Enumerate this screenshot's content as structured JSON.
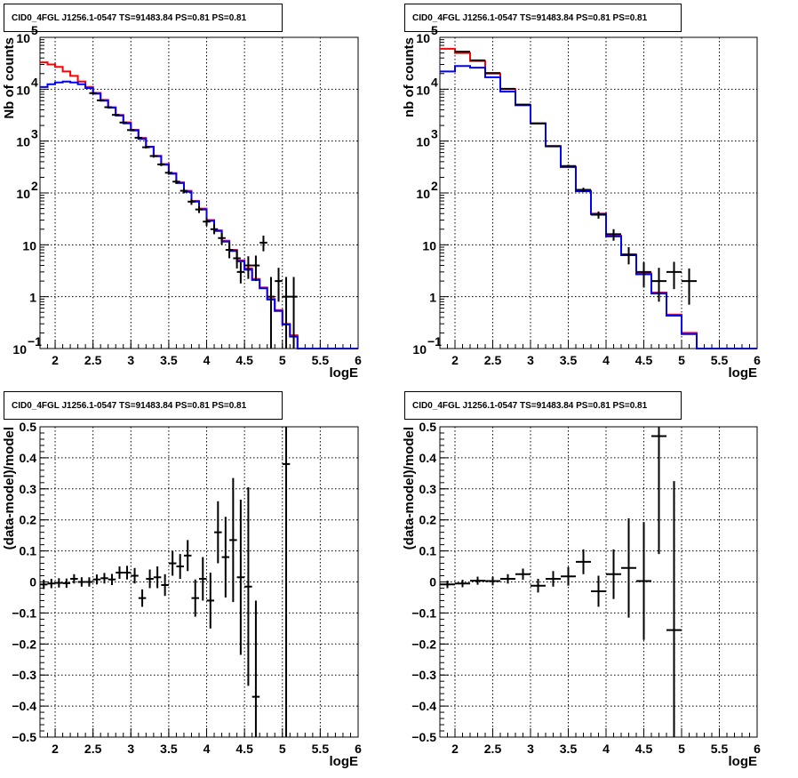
{
  "chart_data": [
    {
      "type": "line",
      "title": "CID0_4FGL J1256.1-0547 TS=91483.84 PS=0.81 PS=0.81",
      "xlabel": "logE",
      "ylabel": "Nb of counts",
      "xlim": [
        1.8,
        6
      ],
      "ylim": [
        0.1,
        100000
      ],
      "yscale": "log",
      "grid": true,
      "x_ticks": [
        "2",
        "2.5",
        "3",
        "3.5",
        "4",
        "4.5",
        "5",
        "5.5",
        "6"
      ],
      "y_ticks": [
        {
          "v": 0.1,
          "label": "10",
          "sup": "−1"
        },
        {
          "v": 1,
          "label": "1",
          "sup": ""
        },
        {
          "v": 10,
          "label": "10",
          "sup": ""
        },
        {
          "v": 100,
          "label": "10",
          "sup": "2"
        },
        {
          "v": 1000,
          "label": "10",
          "sup": "3"
        },
        {
          "v": 10000,
          "label": "10",
          "sup": "4"
        },
        {
          "v": 100000,
          "label": "10",
          "sup": "5"
        }
      ],
      "bin_edges": [
        1.8,
        1.9,
        2.0,
        2.1,
        2.2,
        2.3,
        2.4,
        2.5,
        2.6,
        2.7,
        2.8,
        2.9,
        3.0,
        3.1,
        3.2,
        3.3,
        3.4,
        3.5,
        3.6,
        3.7,
        3.8,
        3.9,
        4.0,
        4.1,
        4.2,
        4.3,
        4.4,
        4.5,
        4.6,
        4.7,
        4.8,
        4.9,
        5.0,
        5.1,
        5.2,
        5.3,
        5.4,
        5.5,
        5.6,
        5.7,
        5.8,
        5.9,
        6.0
      ],
      "series": [
        {
          "color": "#ff0000",
          "values": [
            33000,
            30000,
            27000,
            22000,
            18000,
            14000,
            11000,
            8500,
            6200,
            4500,
            3200,
            2300,
            1650,
            1150,
            780,
            520,
            360,
            240,
            160,
            110,
            70,
            50,
            30,
            19,
            12,
            8,
            5,
            3.5,
            2.2,
            1.5,
            0.9,
            0.55,
            0.3,
            0.18,
            0.1,
            0.1,
            0.1,
            0.1,
            0.1,
            0.1,
            0.1,
            0.1
          ]
        },
        {
          "color": "#0000ff",
          "values": [
            11000,
            12500,
            13500,
            14000,
            13500,
            12500,
            10500,
            8200,
            6000,
            4400,
            3100,
            2200,
            1600,
            1100,
            770,
            510,
            350,
            235,
            155,
            105,
            68,
            48,
            29,
            18.5,
            11.5,
            7.6,
            4.8,
            3.3,
            2.1,
            1.45,
            0.88,
            0.53,
            0.29,
            0.17,
            0.1,
            0.1,
            0.1,
            0.1,
            0.1,
            0.1,
            0.1,
            0.1
          ]
        }
      ],
      "data_points": [
        {
          "x": 2.5,
          "y": 8400,
          "xerr": 0.05,
          "ylo": 8200,
          "yhi": 8600
        },
        {
          "x": 2.6,
          "y": 6100,
          "xerr": 0.05,
          "ylo": 5950,
          "yhi": 6250
        },
        {
          "x": 2.7,
          "y": 4500,
          "xerr": 0.05,
          "ylo": 4380,
          "yhi": 4620
        },
        {
          "x": 2.8,
          "y": 3200,
          "xerr": 0.05,
          "ylo": 3100,
          "yhi": 3300
        },
        {
          "x": 2.9,
          "y": 2280,
          "xerr": 0.05,
          "ylo": 2200,
          "yhi": 2360
        },
        {
          "x": 3.0,
          "y": 1630,
          "xerr": 0.05,
          "ylo": 1560,
          "yhi": 1700
        },
        {
          "x": 3.1,
          "y": 1160,
          "xerr": 0.05,
          "ylo": 1100,
          "yhi": 1220
        },
        {
          "x": 3.2,
          "y": 760,
          "xerr": 0.05,
          "ylo": 720,
          "yhi": 800
        },
        {
          "x": 3.3,
          "y": 515,
          "xerr": 0.05,
          "ylo": 480,
          "yhi": 550
        },
        {
          "x": 3.4,
          "y": 355,
          "xerr": 0.05,
          "ylo": 330,
          "yhi": 380
        },
        {
          "x": 3.5,
          "y": 245,
          "xerr": 0.05,
          "ylo": 225,
          "yhi": 265
        },
        {
          "x": 3.6,
          "y": 165,
          "xerr": 0.05,
          "ylo": 150,
          "yhi": 180
        },
        {
          "x": 3.7,
          "y": 110,
          "xerr": 0.05,
          "ylo": 98,
          "yhi": 122
        },
        {
          "x": 3.8,
          "y": 68,
          "xerr": 0.05,
          "ylo": 59,
          "yhi": 77
        },
        {
          "x": 3.9,
          "y": 48,
          "xerr": 0.05,
          "ylo": 41,
          "yhi": 55
        },
        {
          "x": 4.0,
          "y": 28,
          "xerr": 0.05,
          "ylo": 23,
          "yhi": 33
        },
        {
          "x": 4.1,
          "y": 20,
          "xerr": 0.05,
          "ylo": 16,
          "yhi": 25
        },
        {
          "x": 4.2,
          "y": 13.5,
          "xerr": 0.05,
          "ylo": 10,
          "yhi": 17
        },
        {
          "x": 4.3,
          "y": 8,
          "xerr": 0.05,
          "ylo": 5.5,
          "yhi": 11
        },
        {
          "x": 4.4,
          "y": 5.5,
          "xerr": 0.05,
          "ylo": 3.5,
          "yhi": 8
        },
        {
          "x": 4.45,
          "y": 3.0,
          "xerr": 0.05,
          "ylo": 1.8,
          "yhi": 4.6
        },
        {
          "x": 4.55,
          "y": 4,
          "xerr": 0.05,
          "ylo": 2.2,
          "yhi": 6
        },
        {
          "x": 4.65,
          "y": 4,
          "xerr": 0.05,
          "ylo": 2.0,
          "yhi": 6.2
        },
        {
          "x": 4.75,
          "y": 11,
          "xerr": 0.05,
          "ylo": 7.5,
          "yhi": 15
        },
        {
          "x": 4.85,
          "y": 1,
          "xerr": 0.05,
          "ylo": 0.1,
          "yhi": 2.4
        },
        {
          "x": 4.95,
          "y": 2,
          "xerr": 0.05,
          "ylo": 0.8,
          "yhi": 3.6
        },
        {
          "x": 5.05,
          "y": 1,
          "xerr": 0.05,
          "ylo": 0.1,
          "yhi": 2.4
        },
        {
          "x": 5.15,
          "y": 1,
          "xerr": 0.05,
          "ylo": 0.1,
          "yhi": 2.4
        }
      ]
    },
    {
      "type": "line",
      "title": "CID0_4FGL J1256.1-0547 TS=91483.84 PS=0.81 PS=0.81",
      "xlabel": "logE",
      "ylabel": "nb of counts",
      "xlim": [
        1.8,
        6
      ],
      "ylim": [
        0.1,
        100000
      ],
      "yscale": "log",
      "grid": true,
      "x_ticks": [
        "2",
        "2.5",
        "3",
        "3.5",
        "4",
        "4.5",
        "5",
        "5.5",
        "6"
      ],
      "y_ticks": [
        {
          "v": 0.1,
          "label": "10",
          "sup": "−1"
        },
        {
          "v": 1,
          "label": "1",
          "sup": ""
        },
        {
          "v": 10,
          "label": "10",
          "sup": ""
        },
        {
          "v": 100,
          "label": "10",
          "sup": "2"
        },
        {
          "v": 1000,
          "label": "10",
          "sup": "3"
        },
        {
          "v": 10000,
          "label": "10",
          "sup": "4"
        },
        {
          "v": 100000,
          "label": "10",
          "sup": "5"
        }
      ],
      "bin_edges": [
        1.8,
        2.0,
        2.2,
        2.4,
        2.6,
        2.8,
        3.0,
        3.2,
        3.4,
        3.6,
        3.8,
        4.0,
        4.2,
        4.4,
        4.6,
        4.8,
        5.0,
        5.2,
        5.4,
        5.6,
        5.8,
        6.0
      ],
      "series": [
        {
          "color": "#ff0000",
          "values": [
            60000,
            50000,
            35000,
            20000,
            10000,
            5000,
            2200,
            800,
            320,
            110,
            40,
            15,
            6.5,
            2.8,
            1.2,
            0.45,
            0.2,
            0.1,
            0.1,
            0.1,
            0.1
          ]
        },
        {
          "color": "#0000ff",
          "values": [
            22000,
            28000,
            26000,
            17000,
            9000,
            4900,
            2200,
            790,
            315,
            108,
            39,
            14.5,
            6.3,
            2.7,
            1.15,
            0.43,
            0.19,
            0.1,
            0.1,
            0.1,
            0.1
          ]
        }
      ],
      "data_points": [
        {
          "x": 2.1,
          "y": 53000,
          "xerr": 0.1,
          "ylo": 52000,
          "yhi": 54000
        },
        {
          "x": 2.3,
          "y": 36000,
          "xerr": 0.1,
          "ylo": 35000,
          "yhi": 37000
        },
        {
          "x": 2.5,
          "y": 20500,
          "xerr": 0.1,
          "ylo": 20000,
          "yhi": 21000
        },
        {
          "x": 2.7,
          "y": 10200,
          "xerr": 0.1,
          "ylo": 10000,
          "yhi": 10400
        },
        {
          "x": 2.9,
          "y": 5050,
          "xerr": 0.1,
          "ylo": 4950,
          "yhi": 5150
        },
        {
          "x": 3.1,
          "y": 2180,
          "xerr": 0.1,
          "ylo": 2120,
          "yhi": 2240
        },
        {
          "x": 3.3,
          "y": 800,
          "xerr": 0.1,
          "ylo": 770,
          "yhi": 830
        },
        {
          "x": 3.5,
          "y": 330,
          "xerr": 0.1,
          "ylo": 310,
          "yhi": 350
        },
        {
          "x": 3.7,
          "y": 115,
          "xerr": 0.1,
          "ylo": 104,
          "yhi": 126
        },
        {
          "x": 3.9,
          "y": 38,
          "xerr": 0.1,
          "ylo": 32,
          "yhi": 44
        },
        {
          "x": 4.1,
          "y": 16,
          "xerr": 0.1,
          "ylo": 12,
          "yhi": 20
        },
        {
          "x": 4.3,
          "y": 6.5,
          "xerr": 0.1,
          "ylo": 4.2,
          "yhi": 9
        },
        {
          "x": 4.5,
          "y": 3,
          "xerr": 0.1,
          "ylo": 1.5,
          "yhi": 4.6
        },
        {
          "x": 4.7,
          "y": 2,
          "xerr": 0.1,
          "ylo": 0.8,
          "yhi": 3.6
        },
        {
          "x": 4.9,
          "y": 3,
          "xerr": 0.1,
          "ylo": 1.4,
          "yhi": 4.7
        },
        {
          "x": 5.1,
          "y": 2,
          "xerr": 0.1,
          "ylo": 0.7,
          "yhi": 3.5
        }
      ]
    },
    {
      "type": "scatter",
      "title": "CID0_4FGL J1256.1-0547 TS=91483.84 PS=0.81 PS=0.81",
      "xlabel": "logE",
      "ylabel": "(data-model)/model",
      "xlim": [
        1.8,
        6
      ],
      "ylim": [
        -0.5,
        0.5
      ],
      "grid": true,
      "x_ticks": [
        "2",
        "2.5",
        "3",
        "3.5",
        "4",
        "4.5",
        "5",
        "5.5",
        "6"
      ],
      "y_ticks": [
        "−0.5",
        "−0.4",
        "−0.3",
        "−0.2",
        "−0.1",
        "0",
        "0.1",
        "0.2",
        "0.3",
        "0.4",
        "0.5"
      ],
      "points": [
        {
          "x": 1.85,
          "y": -0.008,
          "xerr": 0.05,
          "yerr": 0.015
        },
        {
          "x": 1.95,
          "y": -0.005,
          "xerr": 0.05,
          "yerr": 0.015
        },
        {
          "x": 2.05,
          "y": -0.003,
          "xerr": 0.05,
          "yerr": 0.015
        },
        {
          "x": 2.15,
          "y": -0.004,
          "xerr": 0.05,
          "yerr": 0.015
        },
        {
          "x": 2.25,
          "y": 0.01,
          "xerr": 0.05,
          "yerr": 0.015
        },
        {
          "x": 2.35,
          "y": 0.0,
          "xerr": 0.05,
          "yerr": 0.015
        },
        {
          "x": 2.45,
          "y": 0.0,
          "xerr": 0.05,
          "yerr": 0.015
        },
        {
          "x": 2.55,
          "y": 0.008,
          "xerr": 0.05,
          "yerr": 0.016
        },
        {
          "x": 2.65,
          "y": 0.012,
          "xerr": 0.05,
          "yerr": 0.017
        },
        {
          "x": 2.75,
          "y": 0.008,
          "xerr": 0.05,
          "yerr": 0.018
        },
        {
          "x": 2.85,
          "y": 0.03,
          "xerr": 0.05,
          "yerr": 0.02
        },
        {
          "x": 2.95,
          "y": 0.03,
          "xerr": 0.05,
          "yerr": 0.022
        },
        {
          "x": 3.05,
          "y": 0.02,
          "xerr": 0.05,
          "yerr": 0.025
        },
        {
          "x": 3.15,
          "y": -0.052,
          "xerr": 0.05,
          "yerr": 0.028
        },
        {
          "x": 3.25,
          "y": 0.01,
          "xerr": 0.05,
          "yerr": 0.03
        },
        {
          "x": 3.35,
          "y": 0.015,
          "xerr": 0.05,
          "yerr": 0.035
        },
        {
          "x": 3.45,
          "y": -0.01,
          "xerr": 0.05,
          "yerr": 0.035
        },
        {
          "x": 3.55,
          "y": 0.06,
          "xerr": 0.05,
          "yerr": 0.04
        },
        {
          "x": 3.65,
          "y": 0.05,
          "xerr": 0.05,
          "yerr": 0.04
        },
        {
          "x": 3.75,
          "y": 0.085,
          "xerr": 0.05,
          "yerr": 0.05
        },
        {
          "x": 3.85,
          "y": -0.052,
          "xerr": 0.05,
          "yerr": 0.06
        },
        {
          "x": 3.95,
          "y": 0.01,
          "xerr": 0.05,
          "yerr": 0.07
        },
        {
          "x": 4.05,
          "y": -0.06,
          "xerr": 0.05,
          "yerr": 0.09
        },
        {
          "x": 4.15,
          "y": 0.16,
          "xerr": 0.05,
          "yerr": 0.1
        },
        {
          "x": 4.25,
          "y": 0.08,
          "xerr": 0.05,
          "yerr": 0.13
        },
        {
          "x": 4.35,
          "y": 0.135,
          "xerr": 0.05,
          "yerr": 0.2
        },
        {
          "x": 4.45,
          "y": 0.015,
          "xerr": 0.05,
          "yerr": 0.25
        },
        {
          "x": 4.55,
          "y": -0.015,
          "xerr": 0.05,
          "yerr": 0.32
        },
        {
          "x": 4.65,
          "y": -0.37,
          "xerr": 0.05,
          "yerr": 0.31
        },
        {
          "x": 5.05,
          "y": 0.38,
          "xerr": 0.05,
          "yerr": 0.88
        }
      ]
    },
    {
      "type": "scatter",
      "title": "CID0_4FGL J1256.1-0547 TS=91483.84 PS=0.81 PS=0.81",
      "xlabel": "logE",
      "ylabel": "(data-model)/model",
      "xlim": [
        1.8,
        6
      ],
      "ylim": [
        -0.5,
        0.5
      ],
      "grid": true,
      "x_ticks": [
        "2",
        "2.5",
        "3",
        "3.5",
        "4",
        "4.5",
        "5",
        "5.5",
        "6"
      ],
      "y_ticks": [
        "−0.5",
        "−0.4",
        "−0.3",
        "−0.2",
        "−0.1",
        "0",
        "0.1",
        "0.2",
        "0.3",
        "0.4",
        "0.5"
      ],
      "points": [
        {
          "x": 1.9,
          "y": -0.008,
          "xerr": 0.1,
          "yerr": 0.012
        },
        {
          "x": 2.1,
          "y": -0.005,
          "xerr": 0.1,
          "yerr": 0.012
        },
        {
          "x": 2.3,
          "y": 0.004,
          "xerr": 0.1,
          "yerr": 0.013
        },
        {
          "x": 2.5,
          "y": 0.003,
          "xerr": 0.1,
          "yerr": 0.014
        },
        {
          "x": 2.7,
          "y": 0.01,
          "xerr": 0.1,
          "yerr": 0.015
        },
        {
          "x": 2.9,
          "y": 0.025,
          "xerr": 0.1,
          "yerr": 0.018
        },
        {
          "x": 3.1,
          "y": -0.012,
          "xerr": 0.1,
          "yerr": 0.022
        },
        {
          "x": 3.3,
          "y": 0.01,
          "xerr": 0.1,
          "yerr": 0.025
        },
        {
          "x": 3.5,
          "y": 0.018,
          "xerr": 0.1,
          "yerr": 0.03
        },
        {
          "x": 3.7,
          "y": 0.065,
          "xerr": 0.1,
          "yerr": 0.04
        },
        {
          "x": 3.9,
          "y": -0.03,
          "xerr": 0.1,
          "yerr": 0.05
        },
        {
          "x": 4.1,
          "y": 0.025,
          "xerr": 0.1,
          "yerr": 0.08
        },
        {
          "x": 4.3,
          "y": 0.045,
          "xerr": 0.1,
          "yerr": 0.16
        },
        {
          "x": 4.5,
          "y": 0.003,
          "xerr": 0.1,
          "yerr": 0.19
        },
        {
          "x": 4.7,
          "y": 0.47,
          "xerr": 0.1,
          "yerr": 0.38
        },
        {
          "x": 4.9,
          "y": -0.155,
          "xerr": 0.1,
          "yerr": 0.48
        }
      ]
    }
  ]
}
